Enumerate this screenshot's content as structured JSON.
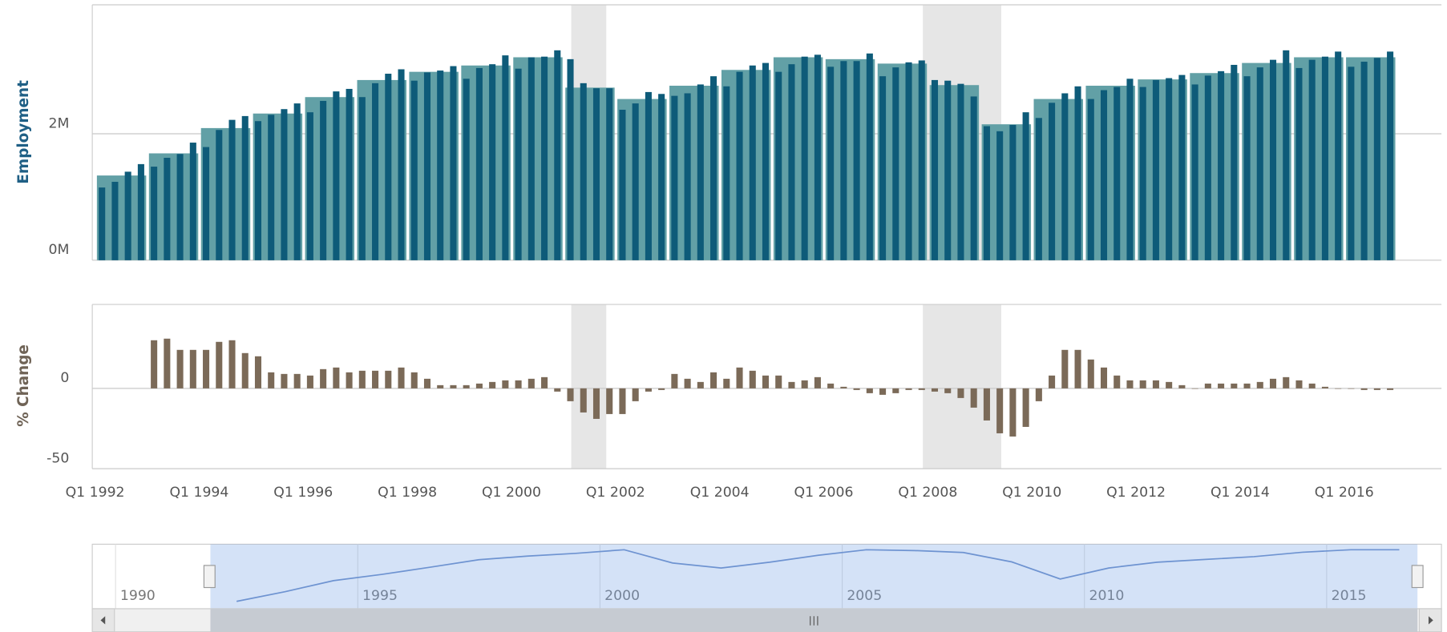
{
  "chart_data": [
    {
      "type": "bar",
      "ylabel": "Employment",
      "ylim": [
        0,
        4.04
      ],
      "yticks": [
        {
          "value": 0,
          "label": "0M"
        },
        {
          "value": 2,
          "label": "2M"
        }
      ],
      "grid": true,
      "series": [
        {
          "color": "#62a0a6",
          "values": [
            1.34,
            null,
            null,
            null,
            1.69,
            null,
            null,
            null,
            2.09,
            null,
            null,
            null,
            2.32,
            null,
            null,
            null,
            2.58,
            null,
            null,
            null,
            2.85,
            null,
            null,
            null,
            2.98,
            null,
            null,
            null,
            3.08,
            null,
            null,
            null,
            3.21,
            null,
            null,
            null,
            2.73,
            null,
            null,
            null,
            2.55,
            null,
            null,
            null,
            2.76,
            null,
            null,
            null,
            3.01,
            null,
            null,
            null,
            3.21,
            null,
            null,
            null,
            3.18,
            null,
            null,
            null,
            3.11,
            null,
            null,
            null,
            2.77,
            null,
            null,
            null,
            2.15,
            null,
            null,
            null,
            2.55,
            null,
            null,
            null,
            2.76,
            null,
            null,
            null,
            2.86,
            null,
            null,
            null,
            2.96,
            null,
            null,
            null,
            3.12,
            null,
            null,
            null,
            3.21,
            null,
            null,
            null,
            3.21,
            null,
            null,
            null
          ]
        },
        {
          "color": "#0e5b79",
          "values": [
            1.15,
            1.24,
            1.4,
            1.52,
            1.48,
            1.62,
            1.68,
            1.86,
            1.79,
            2.06,
            2.22,
            2.28,
            2.2,
            2.3,
            2.39,
            2.48,
            2.34,
            2.52,
            2.67,
            2.71,
            2.58,
            2.8,
            2.95,
            3.02,
            2.84,
            2.97,
            3.0,
            3.07,
            2.87,
            3.04,
            3.1,
            3.24,
            3.03,
            3.21,
            3.22,
            3.32,
            3.18,
            2.8,
            2.72,
            2.72,
            2.38,
            2.48,
            2.66,
            2.63,
            2.6,
            2.64,
            2.78,
            2.91,
            2.75,
            2.98,
            3.08,
            3.12,
            2.98,
            3.1,
            3.22,
            3.25,
            3.06,
            3.15,
            3.15,
            3.27,
            2.91,
            3.05,
            3.13,
            3.16,
            2.85,
            2.84,
            2.79,
            2.59,
            2.12,
            2.04,
            2.14,
            2.34,
            2.25,
            2.49,
            2.64,
            2.75,
            2.55,
            2.69,
            2.74,
            2.87,
            2.74,
            2.85,
            2.88,
            2.93,
            2.78,
            2.92,
            2.99,
            3.09,
            2.91,
            3.05,
            3.17,
            3.32,
            3.04,
            3.17,
            3.22,
            3.3,
            3.06,
            3.14,
            3.2,
            3.3
          ]
        }
      ]
    },
    {
      "type": "bar",
      "ylabel": "% Change",
      "ylim": [
        -50,
        52.3
      ],
      "yticks": [
        -50,
        0
      ],
      "grid": true,
      "categories": [
        "Q1 1992",
        null,
        null,
        null,
        null,
        null,
        null,
        null,
        "Q1 1994",
        null,
        null,
        null,
        null,
        null,
        null,
        null,
        "Q1 1996",
        null,
        null,
        null,
        null,
        null,
        null,
        null,
        "Q1 1998",
        null,
        null,
        null,
        null,
        null,
        null,
        null,
        "Q1 2000",
        null,
        null,
        null,
        null,
        null,
        null,
        null,
        "Q1 2002",
        null,
        null,
        null,
        null,
        null,
        null,
        null,
        "Q1 2004",
        null,
        null,
        null,
        null,
        null,
        null,
        null,
        "Q1 2006",
        null,
        null,
        null,
        null,
        null,
        null,
        null,
        "Q1 2008",
        null,
        null,
        null,
        null,
        null,
        null,
        null,
        "Q1 2010",
        null,
        null,
        null,
        null,
        null,
        null,
        null,
        "Q1 2012",
        null,
        null,
        null,
        null,
        null,
        null,
        null,
        "Q1 2014",
        null,
        null,
        null,
        null,
        null,
        null,
        null,
        "Q1 2016",
        null,
        null,
        null
      ],
      "color": "#7b6a58",
      "values": [
        null,
        null,
        null,
        null,
        30,
        31,
        24,
        24,
        24,
        29,
        30,
        22,
        20,
        10,
        9,
        9,
        8,
        12,
        13,
        10,
        11,
        11,
        11,
        13,
        10,
        6,
        2,
        2,
        2,
        3,
        4,
        5,
        5,
        6,
        7,
        -2,
        -8,
        -15,
        -19,
        -16,
        -16,
        -8,
        -2,
        -1,
        9,
        6,
        4,
        10,
        6,
        13,
        11,
        8,
        8,
        4,
        5,
        7,
        3,
        1,
        -1,
        -3,
        -4,
        -3,
        -1,
        -1,
        -2,
        -3,
        -6,
        -12,
        -20,
        -28,
        -30,
        -24,
        -8,
        8,
        24,
        24,
        18,
        13,
        8,
        5,
        5,
        5,
        4,
        2,
        0,
        3,
        3,
        3,
        3,
        4,
        6,
        7,
        5,
        3,
        1,
        0,
        0,
        -1,
        -1,
        -1
      ]
    },
    {
      "type": "navigator",
      "xlim": [
        1989.52,
        2017.37
      ],
      "xticks": [
        1990,
        1995,
        2000,
        2005,
        2010,
        2015
      ]
    }
  ]
}
